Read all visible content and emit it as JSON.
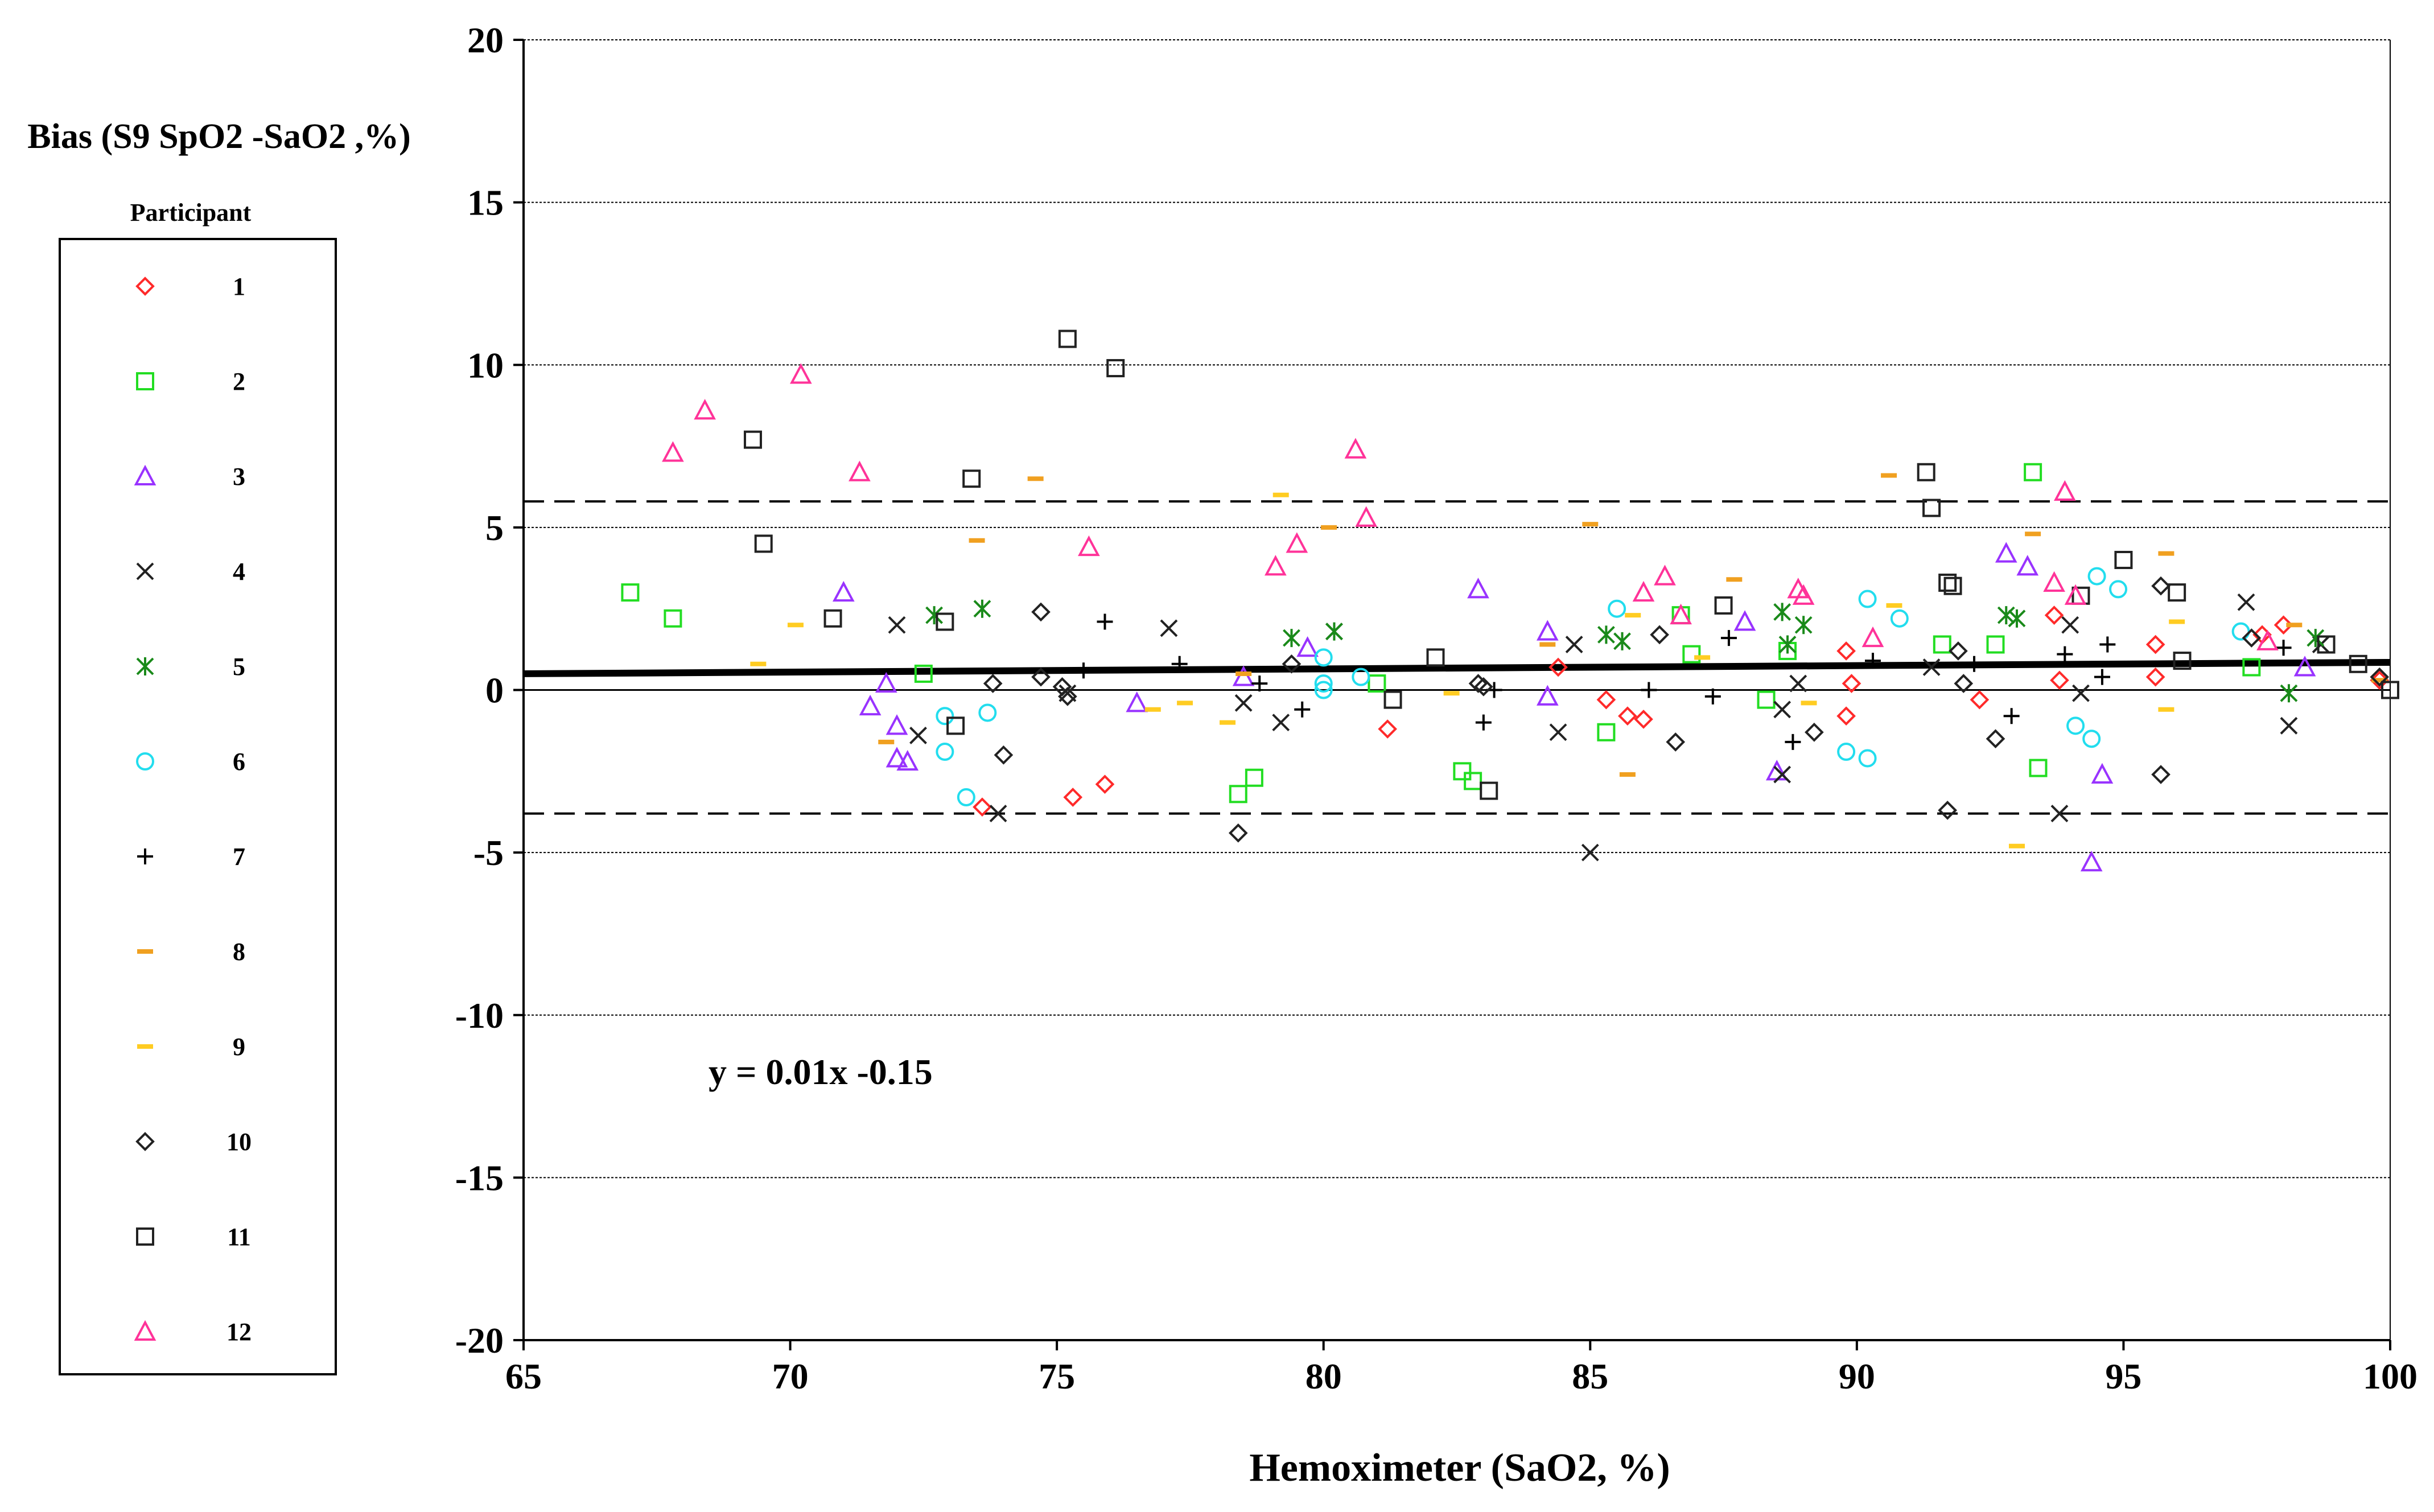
{
  "chart_data": {
    "type": "scatter",
    "title": "",
    "ylabel": "Bias (S9 SpO2 -SaO2 ,%)",
    "xlabel": "Hemoximeter (SaO2, %)",
    "xlim": [
      65,
      100
    ],
    "ylim": [
      -20,
      20
    ],
    "x_ticks": [
      65,
      70,
      75,
      80,
      85,
      90,
      95,
      100
    ],
    "y_ticks": [
      20,
      15,
      10,
      5,
      0,
      -5,
      -10,
      -15,
      -20
    ],
    "grid": "horizontal dotted",
    "legend": {
      "title": "Participant",
      "placement": "left",
      "entries": [
        "1",
        "2",
        "3",
        "4",
        "5",
        "6",
        "7",
        "8",
        "9",
        "10",
        "11",
        "12"
      ]
    },
    "reference_lines": {
      "upper_limit": 5.8,
      "lower_limit": -3.8,
      "regression": {
        "slope": 0.01,
        "intercept": -0.15
      }
    },
    "annotation": "y = 0.01x  -0.15",
    "series": [
      {
        "name": "1",
        "marker": "diamond",
        "color": "#ff2a2a",
        "points": [
          [
            73.6,
            -3.6
          ],
          [
            75.3,
            -3.3
          ],
          [
            75.9,
            -2.9
          ],
          [
            81.2,
            -1.2
          ],
          [
            84.4,
            0.7
          ],
          [
            85.3,
            -0.3
          ],
          [
            85.7,
            -0.8
          ],
          [
            86.0,
            -0.9
          ],
          [
            89.8,
            1.2
          ],
          [
            89.8,
            -0.8
          ],
          [
            89.9,
            0.2
          ],
          [
            92.3,
            -0.3
          ],
          [
            93.7,
            2.3
          ],
          [
            93.8,
            0.3
          ],
          [
            95.6,
            1.4
          ],
          [
            95.6,
            0.4
          ],
          [
            97.6,
            1.7
          ],
          [
            98.0,
            2.0
          ],
          [
            99.8,
            0.3
          ]
        ]
      },
      {
        "name": "2",
        "marker": "square",
        "color": "#22dd22",
        "points": [
          [
            67.0,
            3.0
          ],
          [
            67.8,
            2.2
          ],
          [
            72.5,
            0.5
          ],
          [
            78.4,
            -3.2
          ],
          [
            78.7,
            -2.7
          ],
          [
            81.0,
            0.2
          ],
          [
            82.6,
            -2.5
          ],
          [
            82.8,
            -2.8
          ],
          [
            85.3,
            -1.3
          ],
          [
            86.7,
            2.3
          ],
          [
            86.9,
            1.1
          ],
          [
            88.3,
            -0.3
          ],
          [
            88.7,
            1.2
          ],
          [
            91.6,
            1.4
          ],
          [
            92.6,
            1.4
          ],
          [
            93.3,
            6.7
          ],
          [
            93.4,
            -2.4
          ],
          [
            97.4,
            0.7
          ]
        ]
      },
      {
        "name": "3",
        "marker": "triangle",
        "color": "#9933ff",
        "points": [
          [
            71.0,
            3.0
          ],
          [
            71.5,
            -0.5
          ],
          [
            71.8,
            0.2
          ],
          [
            72.0,
            -1.1
          ],
          [
            72.0,
            -2.1
          ],
          [
            72.2,
            -2.2
          ],
          [
            76.5,
            -0.4
          ],
          [
            78.5,
            0.4
          ],
          [
            79.7,
            1.3
          ],
          [
            82.9,
            3.1
          ],
          [
            84.2,
            1.8
          ],
          [
            84.2,
            -0.2
          ],
          [
            87.9,
            2.1
          ],
          [
            88.5,
            -2.5
          ],
          [
            92.8,
            4.2
          ],
          [
            93.2,
            3.8
          ],
          [
            94.4,
            -5.3
          ],
          [
            94.6,
            -2.6
          ],
          [
            98.4,
            0.7
          ]
        ]
      },
      {
        "name": "4",
        "marker": "x",
        "color": "#222222",
        "points": [
          [
            72.0,
            2.0
          ],
          [
            72.4,
            -1.4
          ],
          [
            73.9,
            -3.8
          ],
          [
            75.2,
            -0.1
          ],
          [
            77.1,
            1.9
          ],
          [
            78.5,
            -0.4
          ],
          [
            79.2,
            -1.0
          ],
          [
            80.2,
            1.8
          ],
          [
            84.4,
            -1.3
          ],
          [
            84.7,
            1.4
          ],
          [
            85.0,
            -5.0
          ],
          [
            88.6,
            -0.6
          ],
          [
            88.6,
            -2.6
          ],
          [
            88.9,
            0.2
          ],
          [
            91.4,
            0.7
          ],
          [
            93.8,
            -3.8
          ],
          [
            94.0,
            2.0
          ],
          [
            94.2,
            -0.1
          ],
          [
            97.3,
            2.7
          ],
          [
            98.1,
            -1.1
          ],
          [
            98.7,
            1.4
          ]
        ]
      },
      {
        "name": "5",
        "marker": "asterisk",
        "color": "#1a8a1a",
        "points": [
          [
            72.7,
            2.3
          ],
          [
            73.6,
            2.5
          ],
          [
            79.4,
            1.6
          ],
          [
            80.2,
            1.8
          ],
          [
            85.3,
            1.7
          ],
          [
            85.6,
            1.5
          ],
          [
            88.6,
            2.4
          ],
          [
            88.7,
            1.4
          ],
          [
            89.0,
            2.0
          ],
          [
            92.8,
            2.3
          ],
          [
            93.0,
            2.2
          ],
          [
            98.1,
            -0.1
          ],
          [
            98.6,
            1.6
          ]
        ]
      },
      {
        "name": "6",
        "marker": "circle",
        "color": "#22ddee",
        "points": [
          [
            72.9,
            -0.8
          ],
          [
            72.9,
            -1.9
          ],
          [
            73.3,
            -3.3
          ],
          [
            73.7,
            -0.7
          ],
          [
            80.0,
            0.2
          ],
          [
            80.0,
            0.0
          ],
          [
            80.0,
            1.0
          ],
          [
            80.7,
            0.4
          ],
          [
            85.5,
            2.5
          ],
          [
            89.8,
            -1.9
          ],
          [
            90.2,
            2.8
          ],
          [
            90.2,
            -2.1
          ],
          [
            90.8,
            2.2
          ],
          [
            94.1,
            -1.1
          ],
          [
            94.4,
            -1.5
          ],
          [
            94.5,
            3.5
          ],
          [
            94.9,
            3.1
          ],
          [
            97.2,
            1.8
          ]
        ]
      },
      {
        "name": "7",
        "marker": "plus",
        "color": "#000000",
        "points": [
          [
            75.5,
            0.6
          ],
          [
            75.9,
            2.1
          ],
          [
            77.3,
            0.8
          ],
          [
            78.8,
            0.2
          ],
          [
            79.6,
            -0.6
          ],
          [
            83.0,
            -1.0
          ],
          [
            83.2,
            0.0
          ],
          [
            86.1,
            0.0
          ],
          [
            87.3,
            -0.2
          ],
          [
            87.6,
            1.6
          ],
          [
            88.8,
            -1.6
          ],
          [
            90.3,
            0.9
          ],
          [
            92.2,
            0.8
          ],
          [
            92.9,
            -0.8
          ],
          [
            93.9,
            1.1
          ],
          [
            94.6,
            0.4
          ],
          [
            94.7,
            1.4
          ],
          [
            98.0,
            1.3
          ]
        ]
      },
      {
        "name": "8",
        "marker": "dash",
        "color": "#f0a020",
        "points": [
          [
            71.8,
            -1.6
          ],
          [
            73.5,
            4.6
          ],
          [
            74.6,
            6.5
          ],
          [
            78.5,
            0.5
          ],
          [
            80.1,
            5.0
          ],
          [
            84.2,
            1.4
          ],
          [
            85.0,
            5.1
          ],
          [
            85.7,
            -2.6
          ],
          [
            87.7,
            3.4
          ],
          [
            90.6,
            6.6
          ],
          [
            93.3,
            4.8
          ],
          [
            95.8,
            4.2
          ],
          [
            98.2,
            2.0
          ],
          [
            99.8,
            0.3
          ]
        ]
      },
      {
        "name": "9",
        "marker": "dash",
        "color": "#ffcc22",
        "points": [
          [
            69.4,
            0.8
          ],
          [
            70.1,
            2.0
          ],
          [
            76.8,
            -0.6
          ],
          [
            77.4,
            -0.4
          ],
          [
            78.2,
            -1.0
          ],
          [
            79.2,
            6.0
          ],
          [
            82.4,
            -0.1
          ],
          [
            85.8,
            2.3
          ],
          [
            87.1,
            1.0
          ],
          [
            89.1,
            -0.4
          ],
          [
            90.7,
            2.6
          ],
          [
            93.0,
            -4.8
          ],
          [
            95.8,
            -0.6
          ],
          [
            96.0,
            2.1
          ]
        ]
      },
      {
        "name": "10",
        "marker": "diamond",
        "color": "#222222",
        "points": [
          [
            73.8,
            0.2
          ],
          [
            74.0,
            -2.0
          ],
          [
            74.7,
            2.4
          ],
          [
            74.7,
            0.4
          ],
          [
            75.1,
            0.1
          ],
          [
            75.2,
            -0.2
          ],
          [
            78.4,
            -4.4
          ],
          [
            79.4,
            0.8
          ],
          [
            82.9,
            0.2
          ],
          [
            83.0,
            0.1
          ],
          [
            86.3,
            1.7
          ],
          [
            86.6,
            -1.6
          ],
          [
            89.2,
            -1.3
          ],
          [
            91.7,
            -3.7
          ],
          [
            91.9,
            1.2
          ],
          [
            92.0,
            0.2
          ],
          [
            92.6,
            -1.5
          ],
          [
            95.7,
            3.2
          ],
          [
            95.7,
            -2.6
          ],
          [
            97.4,
            1.6
          ],
          [
            99.8,
            0.4
          ]
        ]
      },
      {
        "name": "11",
        "marker": "square",
        "color": "#222222",
        "points": [
          [
            69.3,
            7.7
          ],
          [
            69.5,
            4.5
          ],
          [
            70.8,
            2.2
          ],
          [
            72.9,
            2.1
          ],
          [
            73.1,
            -1.1
          ],
          [
            73.4,
            6.5
          ],
          [
            75.2,
            10.8
          ],
          [
            76.1,
            9.9
          ],
          [
            81.3,
            -0.3
          ],
          [
            82.1,
            1.0
          ],
          [
            83.1,
            -3.1
          ],
          [
            87.5,
            2.6
          ],
          [
            91.3,
            6.7
          ],
          [
            91.4,
            5.6
          ],
          [
            91.7,
            3.3
          ],
          [
            91.8,
            3.2
          ],
          [
            94.2,
            2.9
          ],
          [
            95.0,
            4.0
          ],
          [
            96.0,
            3.0
          ],
          [
            96.1,
            0.9
          ],
          [
            98.8,
            1.4
          ],
          [
            99.4,
            0.8
          ],
          [
            100.0,
            0.0
          ]
        ]
      },
      {
        "name": "12",
        "marker": "triangle",
        "color": "#ff3399",
        "points": [
          [
            67.8,
            7.3
          ],
          [
            68.4,
            8.6
          ],
          [
            70.2,
            9.7
          ],
          [
            71.3,
            6.7
          ],
          [
            75.6,
            4.4
          ],
          [
            79.1,
            3.8
          ],
          [
            79.5,
            4.5
          ],
          [
            80.6,
            7.4
          ],
          [
            80.8,
            5.3
          ],
          [
            86.0,
            3.0
          ],
          [
            86.4,
            3.5
          ],
          [
            86.7,
            2.3
          ],
          [
            88.9,
            3.1
          ],
          [
            89.0,
            2.9
          ],
          [
            90.3,
            1.6
          ],
          [
            94.1,
            2.9
          ],
          [
            93.9,
            6.1
          ],
          [
            97.7,
            1.5
          ],
          [
            93.7,
            3.3
          ]
        ]
      }
    ]
  }
}
